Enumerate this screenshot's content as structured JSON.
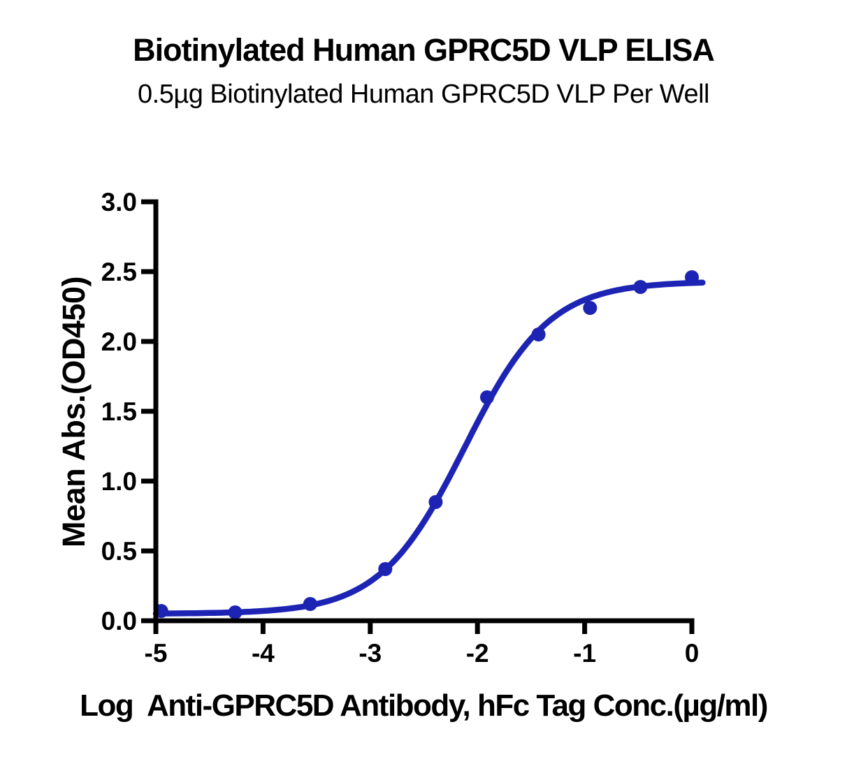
{
  "figure": {
    "background": "#ffffff",
    "text_color": "#000000"
  },
  "chart_data": {
    "type": "scatter",
    "title": "Biotinylated Human GPRC5D VLP ELISA",
    "subtitle": "0.5µg Biotinylated Human GPRC5D VLP Per Well",
    "xlabel": "Log  Anti-GPRC5D Antibody, hFc Tag Conc.(µg/ml)",
    "ylabel": "Mean Abs.(OD450)",
    "x": [
      -4.95,
      -4.26,
      -3.56,
      -2.86,
      -2.39,
      -1.91,
      -1.43,
      -0.95,
      -0.48,
      0.0
    ],
    "y": [
      0.07,
      0.06,
      0.12,
      0.37,
      0.85,
      1.6,
      2.05,
      2.24,
      2.39,
      2.46
    ],
    "xlim": [
      -5,
      0
    ],
    "ylim": [
      0,
      3
    ],
    "xticks": [
      -5,
      -4,
      -3,
      -2,
      -1,
      0
    ],
    "yticks": [
      0.0,
      0.5,
      1.0,
      1.5,
      2.0,
      2.5,
      3.0
    ],
    "curve_fit_4pl": {
      "bottom": 0.05,
      "top": 2.43,
      "logEC50": -2.12,
      "hillslope": 1.1
    },
    "curve_x_end": 0.1,
    "series_color": "#1d24b4",
    "axis_color": "#000000",
    "marker": "filled-circle",
    "grid": false,
    "legend": "none"
  }
}
